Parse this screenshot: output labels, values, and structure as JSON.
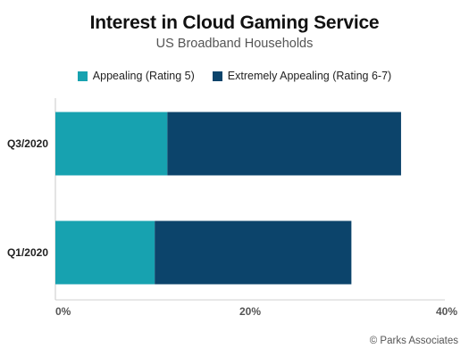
{
  "chart_data": {
    "type": "bar",
    "orientation": "horizontal",
    "stacked": true,
    "title": "Interest in Cloud Gaming Service",
    "subtitle": "US Broadband Households",
    "categories": [
      "Q3/2020",
      "Q1/2020"
    ],
    "series": [
      {
        "name": "Appealing (Rating 5)",
        "values": [
          11.5,
          10.2
        ],
        "color": "#17a2b0"
      },
      {
        "name": "Extremely Appealing (Rating 6-7)",
        "values": [
          24.0,
          20.2
        ],
        "color": "#0c446b"
      }
    ],
    "xlim": [
      0,
      40
    ],
    "xticks": [
      "0%",
      "20%",
      "40%"
    ],
    "xtick_values": [
      0,
      20,
      40
    ],
    "grid": false,
    "legend_position": "top"
  },
  "source": "© Parks Associates"
}
